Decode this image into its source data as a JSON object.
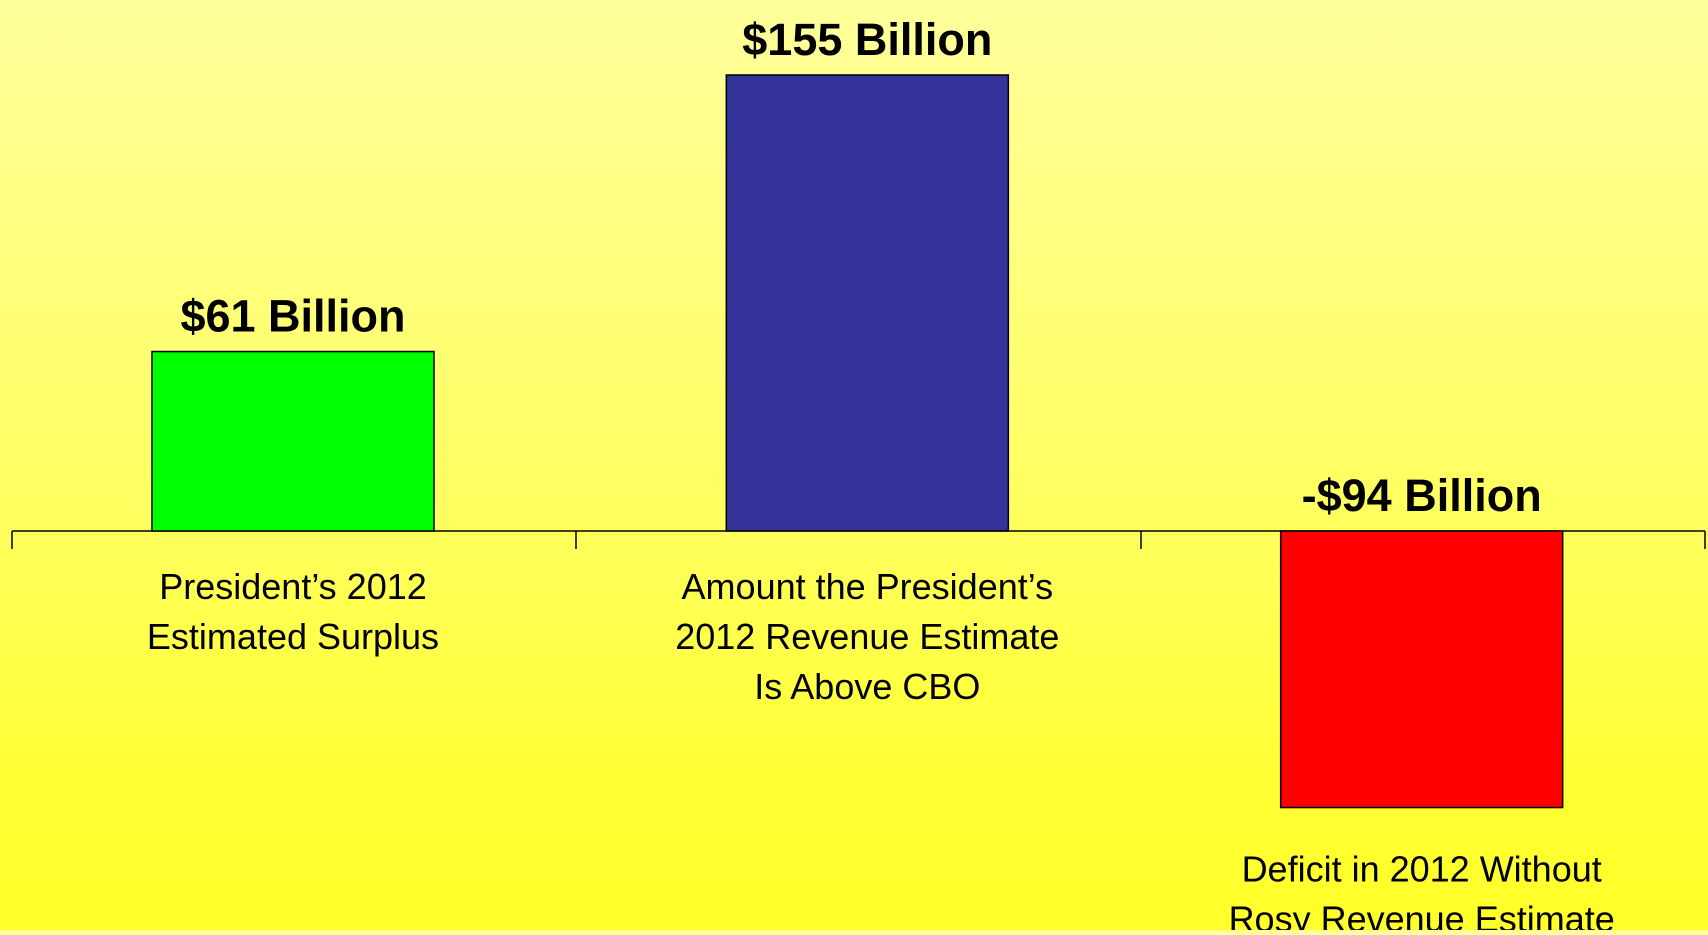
{
  "chart_data": {
    "type": "bar",
    "title": "",
    "xlabel": "",
    "ylabel": "",
    "categories": [
      [
        "President’s 2012",
        "Estimated Surplus"
      ],
      [
        "Amount the President’s",
        "2012 Revenue Estimate",
        "Is Above CBO"
      ],
      [
        "Deficit in 2012 Without",
        "Rosy Revenue Estimate"
      ]
    ],
    "values": [
      61,
      155,
      -94
    ],
    "value_labels": [
      "$61 Billion",
      "$155 Billion",
      "-$94 Billion"
    ],
    "colors": [
      "#00ff00",
      "#333399",
      "#ff0000"
    ],
    "grid": false,
    "legend": "none",
    "ylim": [
      -94,
      155
    ],
    "units": "Billion"
  },
  "background": {
    "top_color": "#ffff9c",
    "bottom_color": "#ffff2a"
  }
}
